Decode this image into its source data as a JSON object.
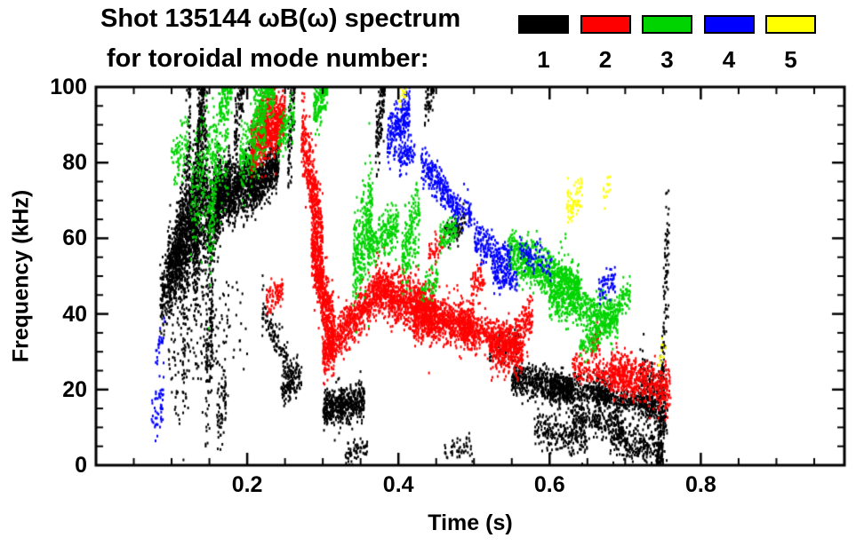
{
  "chart_data": {
    "type": "scatter",
    "title": "Shot 135144 ωB(ω) spectrum",
    "subtitle": "for toroidal mode number:",
    "xlabel": "Time (s)",
    "ylabel": "Frequency (kHz)",
    "xlim": [
      0,
      0.99
    ],
    "ylim": [
      0,
      100
    ],
    "grid": false,
    "legend_position": "top-right",
    "x_ticks": {
      "major": [
        0.2,
        0.4,
        0.6,
        0.8
      ],
      "labels": [
        "0.2",
        "0.4",
        "0.6",
        "0.8"
      ],
      "minor_step": 0.05
    },
    "y_ticks": {
      "major": [
        0,
        20,
        40,
        60,
        80,
        100
      ],
      "labels": [
        "0",
        "20",
        "40",
        "60",
        "80",
        "100"
      ],
      "minor_step": 5
    },
    "cluster_format": [
      "t_start",
      "t_end",
      "f_start_kHz",
      "f_end_kHz",
      "f_sigma_kHz",
      "n_points"
    ],
    "series": [
      {
        "name": "toroidal mode n=1",
        "label": "1",
        "color": "#000000",
        "clusters": [
          [
            0.085,
            0.105,
            44,
            52,
            5,
            220
          ],
          [
            0.095,
            0.115,
            50,
            58,
            6,
            260
          ],
          [
            0.105,
            0.135,
            55,
            68,
            7,
            700
          ],
          [
            0.115,
            0.125,
            30,
            90,
            18,
            180
          ],
          [
            0.128,
            0.148,
            60,
            75,
            12,
            520
          ],
          [
            0.134,
            0.143,
            85,
            100,
            6,
            140
          ],
          [
            0.148,
            0.165,
            63,
            73,
            6,
            420
          ],
          [
            0.145,
            0.155,
            22,
            45,
            10,
            140
          ],
          [
            0.16,
            0.178,
            68,
            76,
            4,
            320
          ],
          [
            0.175,
            0.21,
            70,
            77,
            4,
            620
          ],
          [
            0.183,
            0.196,
            88,
            100,
            5,
            90
          ],
          [
            0.205,
            0.242,
            73,
            80,
            3.5,
            520
          ],
          [
            0.16,
            0.172,
            8,
            20,
            5,
            70
          ],
          [
            0.095,
            0.2,
            26,
            38,
            7,
            160
          ],
          [
            0.22,
            0.26,
            42,
            24,
            2.5,
            130
          ],
          [
            0.245,
            0.272,
            20,
            24,
            2.5,
            120
          ],
          [
            0.254,
            0.263,
            80,
            100,
            7,
            90
          ],
          [
            0.3,
            0.355,
            15,
            17,
            2.5,
            520
          ],
          [
            0.33,
            0.36,
            2,
            5,
            1.5,
            60
          ],
          [
            0.37,
            0.382,
            86,
            100,
            5,
            110
          ],
          [
            0.435,
            0.447,
            94,
            100,
            3,
            50
          ],
          [
            0.46,
            0.49,
            61,
            64,
            2,
            70
          ],
          [
            0.46,
            0.5,
            3,
            5,
            1.5,
            50
          ],
          [
            0.52,
            0.56,
            30,
            33,
            2,
            90
          ],
          [
            0.55,
            0.63,
            23,
            20,
            2.2,
            520
          ],
          [
            0.6,
            0.68,
            20,
            19,
            2,
            430
          ],
          [
            0.58,
            0.65,
            10,
            7,
            2.5,
            240
          ],
          [
            0.63,
            0.7,
            13,
            10,
            2,
            240
          ],
          [
            0.66,
            0.74,
            18,
            16,
            1.8,
            330
          ],
          [
            0.68,
            0.75,
            8,
            4,
            2.5,
            280
          ],
          [
            0.72,
            0.756,
            22,
            12,
            5,
            260
          ],
          [
            0.75,
            0.758,
            35,
            62,
            9,
            70
          ],
          [
            0.742,
            0.752,
            1,
            30,
            8,
            130
          ]
        ]
      },
      {
        "name": "toroidal mode n=2",
        "label": "2",
        "color": "#ff0000",
        "clusters": [
          [
            0.205,
            0.25,
            84,
            92,
            3.5,
            700
          ],
          [
            0.215,
            0.237,
            93,
            97,
            2,
            110
          ],
          [
            0.225,
            0.247,
            43,
            46,
            2,
            80
          ],
          [
            0.272,
            0.3,
            88,
            60,
            5,
            420
          ],
          [
            0.285,
            0.315,
            60,
            32,
            5,
            650
          ],
          [
            0.3,
            0.37,
            29,
            45,
            3,
            650
          ],
          [
            0.37,
            0.45,
            47,
            40,
            3.5,
            950
          ],
          [
            0.42,
            0.5,
            40,
            37,
            3,
            750
          ],
          [
            0.48,
            0.56,
            36,
            33,
            2.5,
            480
          ],
          [
            0.52,
            0.565,
            31,
            29,
            3,
            280
          ],
          [
            0.555,
            0.578,
            35,
            40,
            3,
            120
          ],
          [
            0.495,
            0.515,
            47,
            50,
            2,
            60
          ],
          [
            0.44,
            0.46,
            56,
            60,
            2,
            50
          ],
          [
            0.63,
            0.71,
            26,
            23,
            2,
            240
          ],
          [
            0.68,
            0.76,
            25,
            20,
            3,
            480
          ],
          [
            0.655,
            0.667,
            31,
            34,
            2,
            50
          ]
        ]
      },
      {
        "name": "toroidal mode n=3",
        "label": "3",
        "color": "#00d400",
        "clusters": [
          [
            0.1,
            0.122,
            80,
            86,
            4,
            80
          ],
          [
            0.125,
            0.175,
            72,
            88,
            8,
            280
          ],
          [
            0.149,
            0.159,
            58,
            76,
            8,
            110
          ],
          [
            0.163,
            0.18,
            94,
            100,
            3,
            80
          ],
          [
            0.19,
            0.225,
            80,
            90,
            5,
            240
          ],
          [
            0.208,
            0.236,
            93,
            99,
            3,
            150
          ],
          [
            0.24,
            0.262,
            86,
            92,
            3,
            100
          ],
          [
            0.288,
            0.306,
            93,
            100,
            3,
            150
          ],
          [
            0.34,
            0.366,
            52,
            68,
            7,
            330
          ],
          [
            0.36,
            0.4,
            58,
            64,
            3,
            240
          ],
          [
            0.405,
            0.428,
            54,
            67,
            5,
            200
          ],
          [
            0.455,
            0.478,
            60,
            63,
            2,
            100
          ],
          [
            0.43,
            0.452,
            46,
            50,
            2,
            60
          ],
          [
            0.545,
            0.64,
            56,
            47,
            3,
            800
          ],
          [
            0.6,
            0.69,
            45,
            38,
            3,
            560
          ],
          [
            0.64,
            0.667,
            31,
            34,
            2,
            80
          ],
          [
            0.662,
            0.69,
            37,
            40,
            2,
            80
          ],
          [
            0.69,
            0.707,
            42,
            46,
            2.5,
            70
          ]
        ]
      },
      {
        "name": "toroidal mode n=4",
        "label": "4",
        "color": "#0000ff",
        "clusters": [
          [
            0.385,
            0.415,
            85,
            94,
            3.5,
            240
          ],
          [
            0.4,
            0.422,
            80,
            84,
            2,
            80
          ],
          [
            0.43,
            0.466,
            79,
            72,
            2.5,
            190
          ],
          [
            0.465,
            0.497,
            70,
            66,
            2,
            120
          ],
          [
            0.5,
            0.55,
            60,
            53,
            2.5,
            210
          ],
          [
            0.525,
            0.557,
            50,
            48,
            2,
            100
          ],
          [
            0.56,
            0.603,
            57,
            52,
            2,
            90
          ],
          [
            0.665,
            0.687,
            46,
            50,
            2,
            60
          ],
          [
            0.073,
            0.09,
            12,
            17,
            3,
            50
          ],
          [
            0.079,
            0.091,
            30,
            34,
            2,
            25
          ]
        ]
      },
      {
        "name": "toroidal mode n=5",
        "label": "5",
        "color": "#ffff00",
        "clusters": [
          [
            0.622,
            0.643,
            68,
            72,
            2.5,
            70
          ],
          [
            0.4,
            0.41,
            97,
            100,
            1.5,
            15
          ],
          [
            0.671,
            0.682,
            72,
            75,
            1.5,
            15
          ],
          [
            0.744,
            0.754,
            28,
            31,
            1.5,
            12
          ]
        ]
      }
    ]
  }
}
